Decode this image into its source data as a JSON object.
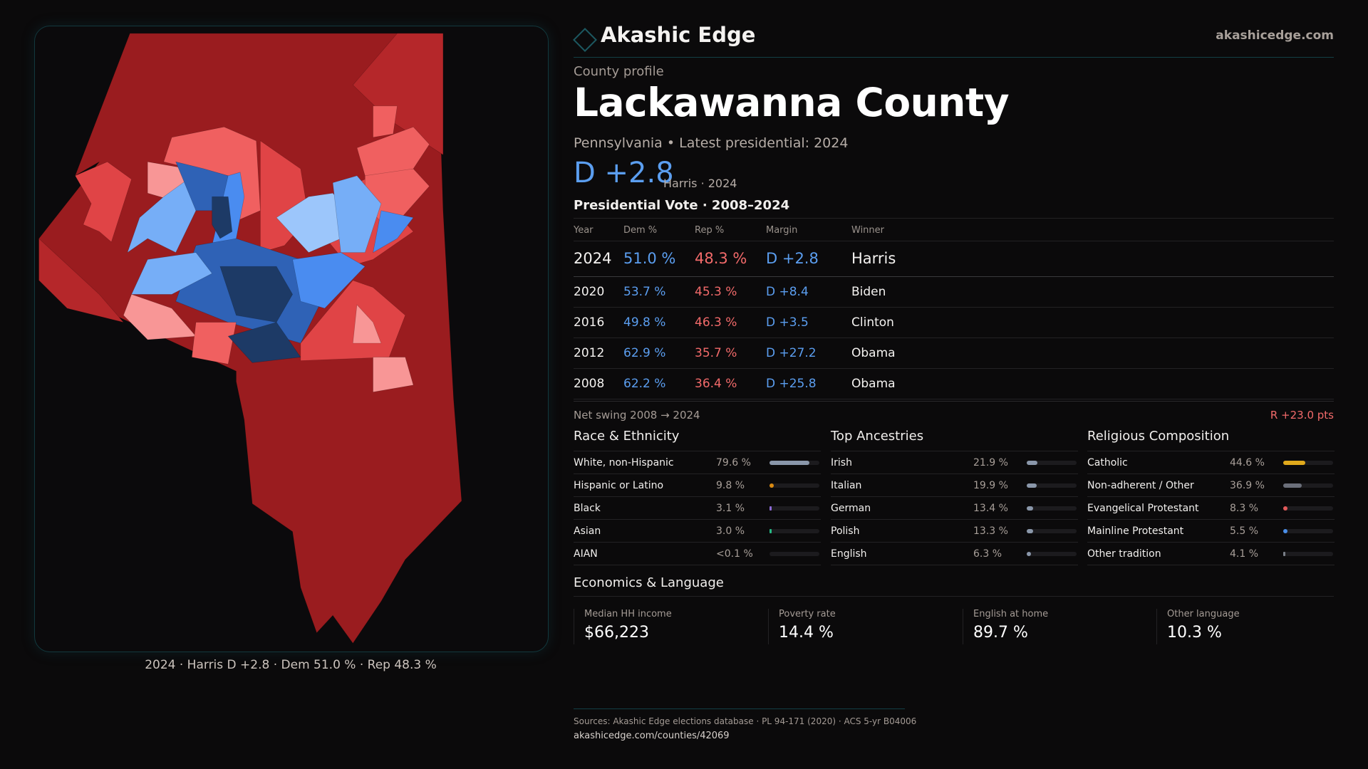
{
  "brand": {
    "name": "Akashic Edge",
    "site": "akashicedge.com",
    "logo_icon": "diamond-outline"
  },
  "profile": {
    "eyebrow": "County profile",
    "title": "Lackawanna County",
    "subtitle": "Pennsylvania • Latest presidential: 2024",
    "margin": "D +2.8",
    "margin_sub": "Harris · 2024"
  },
  "vote": {
    "title": "Presidential Vote · 2008–2024",
    "headers": [
      "Year",
      "Dem %",
      "Rep %",
      "Margin",
      "Winner"
    ],
    "rows": [
      {
        "year": "2024",
        "dem": "51.0 %",
        "rep": "48.3 %",
        "margin": "D +2.8",
        "winner": "Harris"
      },
      {
        "year": "2020",
        "dem": "53.7 %",
        "rep": "45.3 %",
        "margin": "D +8.4",
        "winner": "Biden"
      },
      {
        "year": "2016",
        "dem": "49.8 %",
        "rep": "46.3 %",
        "margin": "D +3.5",
        "winner": "Clinton"
      },
      {
        "year": "2012",
        "dem": "62.9 %",
        "rep": "35.7 %",
        "margin": "D +27.2",
        "winner": "Obama"
      },
      {
        "year": "2008",
        "dem": "62.2 %",
        "rep": "36.4 %",
        "margin": "D +25.8",
        "winner": "Obama"
      }
    ],
    "swing_label": "Net swing 2008 → 2024",
    "swing_value": "R +23.0 pts"
  },
  "race": {
    "title": "Race & Ethnicity",
    "items": [
      {
        "label": "White, non-Hispanic",
        "value": "79.6 %",
        "pct": 79.6,
        "color": "#8a97aa"
      },
      {
        "label": "Hispanic or Latino",
        "value": "9.8 %",
        "pct": 9.8,
        "color": "#d98a12"
      },
      {
        "label": "Black",
        "value": "3.1 %",
        "pct": 3.1,
        "color": "#8c6ad6"
      },
      {
        "label": "Asian",
        "value": "3.0 %",
        "pct": 3.0,
        "color": "#25b884"
      },
      {
        "label": "AIAN",
        "value": "<0.1 %",
        "pct": 0.05,
        "color": "#555555"
      }
    ]
  },
  "ancestry": {
    "title": "Top Ancestries",
    "items": [
      {
        "label": "Irish",
        "value": "21.9 %",
        "pct": 21.9,
        "color": "#8a97aa"
      },
      {
        "label": "Italian",
        "value": "19.9 %",
        "pct": 19.9,
        "color": "#8a97aa"
      },
      {
        "label": "German",
        "value": "13.4 %",
        "pct": 13.4,
        "color": "#8a97aa"
      },
      {
        "label": "Polish",
        "value": "13.3 %",
        "pct": 13.3,
        "color": "#8a97aa"
      },
      {
        "label": "English",
        "value": "6.3 %",
        "pct": 6.3,
        "color": "#8a97aa"
      }
    ]
  },
  "religion": {
    "title": "Religious Composition",
    "items": [
      {
        "label": "Catholic",
        "value": "44.6 %",
        "pct": 44.6,
        "color": "#e0a91c"
      },
      {
        "label": "Non-adherent / Other",
        "value": "36.9 %",
        "pct": 36.9,
        "color": "#6b6f7a"
      },
      {
        "label": "Evangelical Protestant",
        "value": "8.3 %",
        "pct": 8.3,
        "color": "#e25a5a"
      },
      {
        "label": "Mainline Protestant",
        "value": "5.5 %",
        "pct": 5.5,
        "color": "#4a8ee8"
      },
      {
        "label": "Other tradition",
        "value": "4.1 %",
        "pct": 4.1,
        "color": "#7a7f88"
      }
    ]
  },
  "economics": {
    "title": "Economics & Language",
    "items": [
      {
        "label": "Median HH income",
        "value": "$66,223"
      },
      {
        "label": "Poverty rate",
        "value": "14.4 %"
      },
      {
        "label": "English at home",
        "value": "89.7 %"
      },
      {
        "label": "Other language",
        "value": "10.3 %"
      }
    ]
  },
  "map": {
    "caption": "2024 · Harris D +2.8 · Dem 51.0 % · Rep 48.3 %",
    "colors": {
      "safe_r": "#9a1c1f",
      "likely_r": "#b5272a",
      "lean_r": "#e04446",
      "tilt_r": "#f06060",
      "toss_r": "#f89696",
      "toss_d": "#9cc6fb",
      "tilt_d": "#76aef7",
      "lean_d": "#4a8cf0",
      "likely_d": "#2f62b6",
      "safe_d": "#1d3a66"
    }
  },
  "footer": {
    "sources": "Sources: Akashic Edge elections database · PL 94-171 (2020) · ACS 5-yr B04006",
    "url": "akashicedge.com/counties/42069"
  }
}
